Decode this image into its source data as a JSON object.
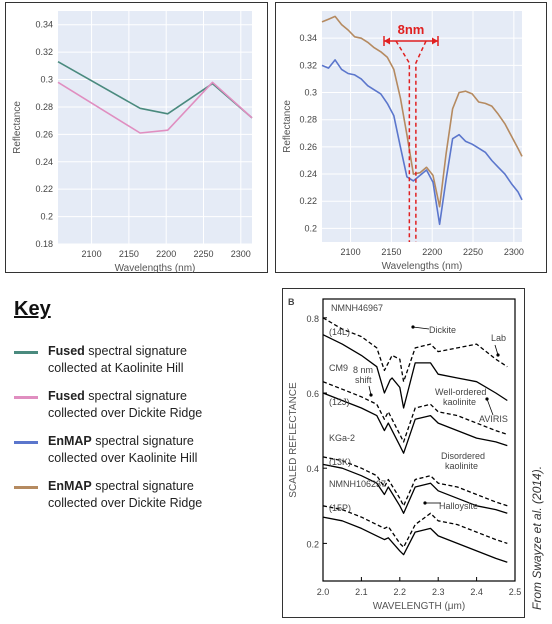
{
  "colors": {
    "fused_kaolinite": "#4a8a7e",
    "fused_dickite": "#e08ec0",
    "enmap_kaolinite": "#5b76cc",
    "enmap_dickite": "#b58a60",
    "plot_bg": "#e5ebf6",
    "annotation_red": "#e02020"
  },
  "chart_data": [
    {
      "type": "line",
      "xlabel": "Wavelengths (nm)",
      "ylabel": "Reflectance",
      "xlim": [
        2055,
        2315
      ],
      "ylim": [
        0.18,
        0.35
      ],
      "xticks": [
        "2100",
        "2150",
        "2200",
        "2250",
        "2300"
      ],
      "yticks": [
        "0.18",
        "0.2",
        "0.22",
        "0.24",
        "0.26",
        "0.28",
        "0.3",
        "0.32",
        "0.34"
      ],
      "series": [
        {
          "key": "fused_kaolinite",
          "x": [
            2055,
            2165,
            2202,
            2262,
            2315
          ],
          "y": [
            0.313,
            0.279,
            0.275,
            0.297,
            0.272
          ]
        },
        {
          "key": "fused_dickite",
          "x": [
            2055,
            2165,
            2202,
            2262,
            2315
          ],
          "y": [
            0.298,
            0.261,
            0.263,
            0.298,
            0.272
          ]
        }
      ]
    },
    {
      "type": "line",
      "xlabel": "Wavelengths (nm)",
      "ylabel": "Reflectance",
      "xlim": [
        2065,
        2310
      ],
      "ylim": [
        0.19,
        0.36
      ],
      "xticks": [
        "2100",
        "2150",
        "2200",
        "2250",
        "2300"
      ],
      "yticks": [
        "0.2",
        "0.22",
        "0.24",
        "0.26",
        "0.28",
        "0.3",
        "0.32",
        "0.34"
      ],
      "annotation": "8nm",
      "annotation_x": [
        2172,
        2180
      ],
      "series": [
        {
          "key": "enmap_dickite",
          "x": [
            2065,
            2073,
            2081,
            2089,
            2097,
            2105,
            2113,
            2121,
            2129,
            2137,
            2145,
            2153,
            2161,
            2169,
            2177,
            2185,
            2193,
            2201,
            2209,
            2217,
            2225,
            2233,
            2241,
            2249,
            2257,
            2265,
            2273,
            2281,
            2289,
            2297,
            2305,
            2310
          ],
          "y": [
            0.352,
            0.354,
            0.356,
            0.35,
            0.346,
            0.341,
            0.34,
            0.337,
            0.333,
            0.33,
            0.326,
            0.317,
            0.296,
            0.269,
            0.24,
            0.241,
            0.245,
            0.239,
            0.216,
            0.255,
            0.288,
            0.3,
            0.301,
            0.299,
            0.293,
            0.292,
            0.29,
            0.284,
            0.277,
            0.268,
            0.259,
            0.253
          ]
        },
        {
          "key": "enmap_kaolinite",
          "x": [
            2065,
            2073,
            2081,
            2089,
            2097,
            2105,
            2113,
            2121,
            2129,
            2137,
            2145,
            2153,
            2161,
            2169,
            2177,
            2185,
            2193,
            2201,
            2209,
            2217,
            2225,
            2233,
            2241,
            2249,
            2257,
            2265,
            2273,
            2281,
            2289,
            2297,
            2305,
            2310
          ],
          "y": [
            0.32,
            0.318,
            0.324,
            0.317,
            0.314,
            0.313,
            0.31,
            0.305,
            0.302,
            0.299,
            0.292,
            0.283,
            0.26,
            0.238,
            0.235,
            0.239,
            0.243,
            0.234,
            0.203,
            0.236,
            0.266,
            0.269,
            0.264,
            0.262,
            0.259,
            0.256,
            0.25,
            0.245,
            0.24,
            0.233,
            0.227,
            0.221
          ]
        }
      ]
    },
    {
      "type": "line",
      "panel_label": "B",
      "xlabel": "WAVELENGTH (μm)",
      "ylabel": "SCALED REFLECTANCE",
      "xlim": [
        2.0,
        2.5
      ],
      "ylim": [
        0.1,
        0.85
      ],
      "xticks": [
        "2.0",
        "2.1",
        "2.2",
        "2.3",
        "2.4",
        "2.5"
      ],
      "yticks": [
        "0.2",
        "0.4",
        "0.6",
        "0.8"
      ],
      "annotations": [
        "NMNH46967",
        "(14L)",
        "Dickite",
        "Lab",
        "CM9",
        "8 nm shift",
        "(12J)",
        "Well-ordered kaolinite",
        "AVIRIS",
        "KGa-2",
        "(13K)",
        "Disordered kaolinite",
        "NMNH106237",
        "(15P)",
        "Halloysite"
      ],
      "series": [
        {
          "name": "Dickite Lab",
          "style": "dashed",
          "x": [
            2.0,
            2.05,
            2.1,
            2.14,
            2.16,
            2.175,
            2.18,
            2.2,
            2.21,
            2.24,
            2.28,
            2.3,
            2.35,
            2.4,
            2.45,
            2.48
          ],
          "y": [
            0.8,
            0.77,
            0.75,
            0.72,
            0.66,
            0.69,
            0.7,
            0.69,
            0.63,
            0.72,
            0.73,
            0.71,
            0.72,
            0.73,
            0.69,
            0.67
          ]
        },
        {
          "name": "Dickite AVIRIS",
          "style": "solid",
          "x": [
            2.0,
            2.05,
            2.1,
            2.14,
            2.16,
            2.175,
            2.18,
            2.2,
            2.21,
            2.24,
            2.28,
            2.3,
            2.35,
            2.4,
            2.45,
            2.48
          ],
          "y": [
            0.755,
            0.73,
            0.7,
            0.67,
            0.6,
            0.635,
            0.64,
            0.615,
            0.56,
            0.68,
            0.68,
            0.65,
            0.64,
            0.63,
            0.6,
            0.58
          ]
        },
        {
          "name": "Well-ordered kaolinite Lab",
          "style": "dashed",
          "x": [
            2.0,
            2.05,
            2.1,
            2.14,
            2.16,
            2.17,
            2.2,
            2.21,
            2.24,
            2.28,
            2.3,
            2.35,
            2.4,
            2.45,
            2.48
          ],
          "y": [
            0.63,
            0.61,
            0.59,
            0.57,
            0.53,
            0.55,
            0.49,
            0.47,
            0.56,
            0.57,
            0.55,
            0.54,
            0.52,
            0.5,
            0.49
          ]
        },
        {
          "name": "Well-ordered kaolinite AVIRIS",
          "style": "solid",
          "x": [
            2.0,
            2.05,
            2.1,
            2.14,
            2.16,
            2.17,
            2.2,
            2.21,
            2.24,
            2.28,
            2.3,
            2.35,
            2.4,
            2.45,
            2.48
          ],
          "y": [
            0.6,
            0.58,
            0.56,
            0.54,
            0.5,
            0.52,
            0.46,
            0.44,
            0.53,
            0.54,
            0.52,
            0.5,
            0.48,
            0.47,
            0.46
          ]
        },
        {
          "name": "Disordered kaolinite Lab",
          "style": "dashed",
          "x": [
            2.0,
            2.05,
            2.1,
            2.14,
            2.16,
            2.17,
            2.2,
            2.21,
            2.24,
            2.28,
            2.3,
            2.35,
            2.4,
            2.45,
            2.48
          ],
          "y": [
            0.43,
            0.42,
            0.4,
            0.38,
            0.35,
            0.37,
            0.32,
            0.3,
            0.37,
            0.38,
            0.36,
            0.35,
            0.33,
            0.31,
            0.3
          ]
        },
        {
          "name": "Disordered kaolinite AVIRIS",
          "style": "solid",
          "x": [
            2.0,
            2.05,
            2.1,
            2.14,
            2.16,
            2.17,
            2.2,
            2.21,
            2.24,
            2.28,
            2.3,
            2.35,
            2.4,
            2.45,
            2.48
          ],
          "y": [
            0.41,
            0.4,
            0.38,
            0.36,
            0.33,
            0.35,
            0.3,
            0.28,
            0.35,
            0.36,
            0.34,
            0.32,
            0.3,
            0.29,
            0.28
          ]
        },
        {
          "name": "Halloysite Lab",
          "style": "dashed",
          "x": [
            2.0,
            2.05,
            2.1,
            2.14,
            2.16,
            2.17,
            2.2,
            2.21,
            2.24,
            2.28,
            2.3,
            2.35,
            2.4,
            2.45,
            2.48
          ],
          "y": [
            0.3,
            0.29,
            0.27,
            0.25,
            0.24,
            0.245,
            0.2,
            0.19,
            0.25,
            0.28,
            0.26,
            0.25,
            0.23,
            0.21,
            0.2
          ]
        },
        {
          "name": "Halloysite AVIRIS",
          "style": "solid",
          "x": [
            2.0,
            2.05,
            2.1,
            2.14,
            2.16,
            2.17,
            2.2,
            2.21,
            2.24,
            2.28,
            2.3,
            2.35,
            2.4,
            2.45,
            2.48
          ],
          "y": [
            0.27,
            0.26,
            0.24,
            0.22,
            0.21,
            0.215,
            0.18,
            0.17,
            0.23,
            0.24,
            0.22,
            0.2,
            0.18,
            0.16,
            0.15
          ]
        }
      ]
    }
  ],
  "key": {
    "title": "Key",
    "items": [
      {
        "bold": "Fused",
        "line1": " spectral signature",
        "line2": "collected at Kaolinite Hill"
      },
      {
        "bold": "Fused",
        "line1": " spectral signature",
        "line2": "collected over Dickite Ridge"
      },
      {
        "bold": "EnMAP",
        "line1": " spectral signature",
        "line2": "collected over Kaolinite Hill"
      },
      {
        "bold": "EnMAP",
        "line1": " spectral signature",
        "line2": "collected over Dickite Ridge"
      }
    ]
  },
  "credit": "From Swayze et al. (2014)."
}
